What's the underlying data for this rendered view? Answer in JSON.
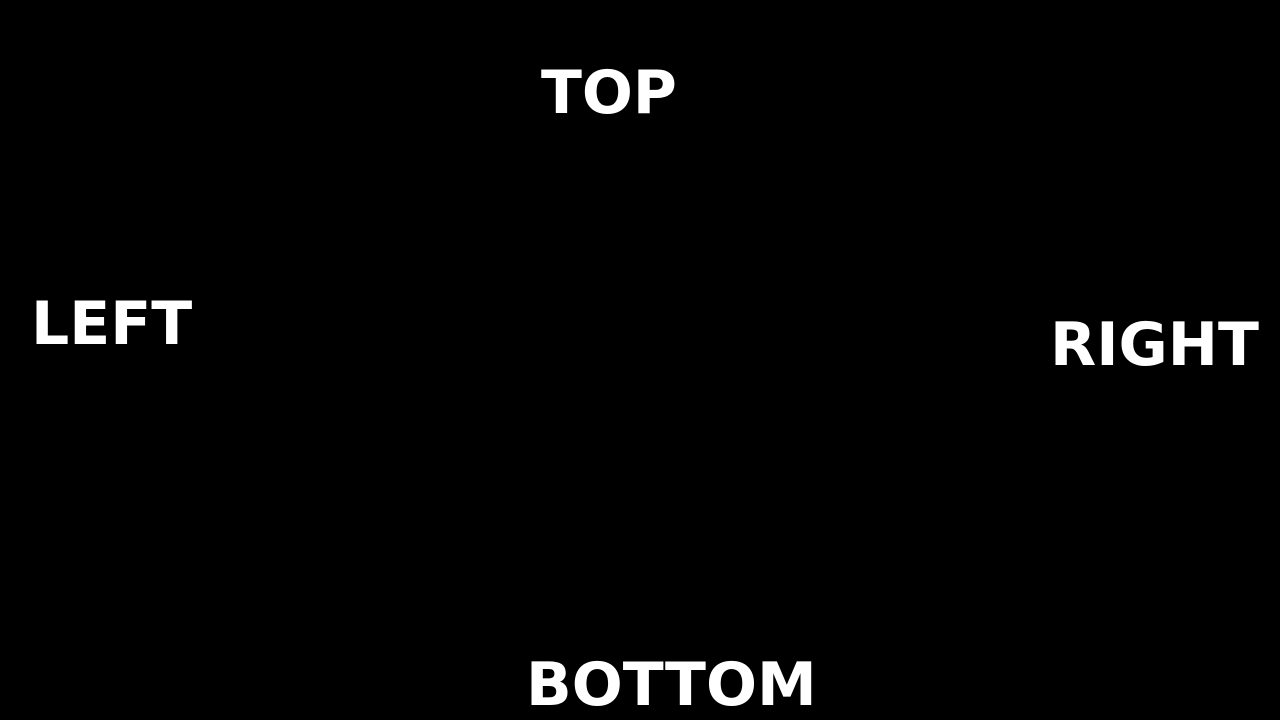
{
  "labels": {
    "top": "TOP",
    "left": "LEFT",
    "right": "RIGHT",
    "bottom": "BOTTOM"
  },
  "colors": {
    "background": "#000000",
    "text": "#ffffff"
  }
}
